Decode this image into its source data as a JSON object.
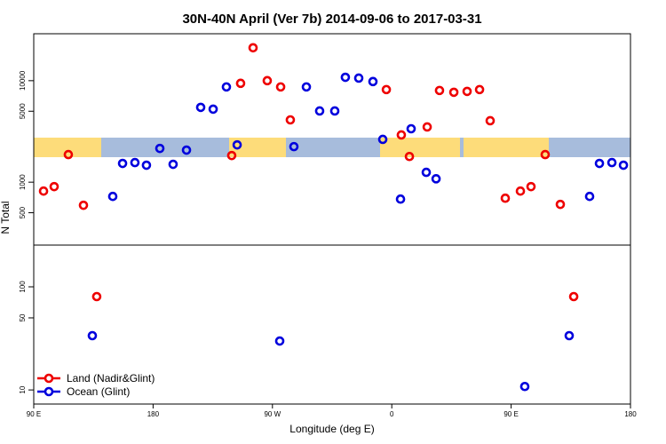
{
  "chart_data": [
    {
      "type": "scatter",
      "title": "30N-40N April (Ver 7b)   2014-09-06 to 2017-03-31",
      "ylabel": "N Total",
      "log_y": true,
      "legend": "bottom-left",
      "xlim": [
        90,
        540
      ],
      "ylim": [
        240,
        29000
      ],
      "yticks": [
        500,
        1000,
        5000,
        10000
      ],
      "series": [
        {
          "name": "Land (Nadir&Glint)",
          "color": "#ee0000",
          "x": [
            97.4,
            105.4,
            116.1,
            127.5,
            239.3,
            246,
            255.4,
            266.1,
            276.2,
            283.5,
            355.9,
            367.2,
            373.3,
            386.7,
            396,
            406.8,
            416.8,
            426.2,
            434.2,
            445.6,
            457,
            465,
            475.7,
            487.1
          ],
          "values": [
            817,
            904,
            1870,
            592,
            1830,
            9420,
            21100,
            10000,
            8680,
            4110,
            8170,
            2920,
            1790,
            3500,
            8010,
            7690,
            7840,
            8170,
            4030,
            695,
            817,
            904,
            1870,
            604
          ]
        },
        {
          "name": "Ocean (Glint)",
          "color": "#0000dd",
          "x": [
            149.6,
            157,
            166.3,
            175,
            185.1,
            195.1,
            205.2,
            215.9,
            225.3,
            235.3,
            243.4,
            286.2,
            295.6,
            305.6,
            317,
            325,
            335.1,
            345.8,
            353.2,
            366.6,
            374.6,
            386,
            393.4,
            509.2,
            516.6,
            526,
            534.7
          ],
          "values": [
            724,
            1530,
            1560,
            1470,
            2150,
            1500,
            2070,
            5460,
            5240,
            8680,
            2330,
            2240,
            8680,
            5030,
            5030,
            10800,
            10600,
            9800,
            2640,
            681,
            3360,
            1250,
            1080,
            724,
            1530,
            1560,
            1470
          ]
        }
      ]
    },
    {
      "type": "scatter",
      "xlabel": "Longitude (deg E)",
      "log_y": true,
      "xlim": [
        90,
        540
      ],
      "ylim": [
        7.3,
        254
      ],
      "xticks": [
        {
          "value": 90,
          "label": "90 E"
        },
        180,
        {
          "value": 270,
          "label": "90 W"
        },
        {
          "value": 360,
          "label": "0"
        },
        {
          "value": 450,
          "label": "90 E"
        },
        {
          "value": 540,
          "label": "180"
        }
      ],
      "yticks": [
        10,
        50,
        100
      ],
      "series": [
        {
          "color": "#ee0000",
          "x": [
            137.5,
            497.2
          ],
          "values": [
            80.4,
            80.4
          ]
        },
        {
          "color": "#0000dd",
          "x": [
            134.2,
            275.5,
            460.3,
            493.8
          ],
          "values": [
            33.6,
            29.8,
            10.8,
            33.6
          ]
        }
      ]
    }
  ]
}
